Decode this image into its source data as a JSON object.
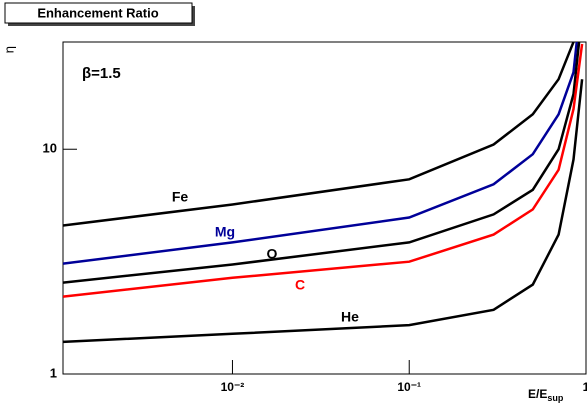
{
  "chart_data": {
    "type": "line",
    "title": "Enhancement Ratio",
    "annotation": "β=1.5",
    "x_label": "E/E",
    "x_label_sub": "sup",
    "y_label": "η",
    "x": [
      0.0011,
      0.01,
      0.1,
      0.3,
      0.5,
      0.7,
      0.85,
      0.95
    ],
    "series": [
      {
        "name": "Fe",
        "color": "#000000",
        "values": [
          4.58,
          5.68,
          7.35,
          10.5,
          14.3,
          20.5,
          30,
          70
        ]
      },
      {
        "name": "Mg",
        "color": "#000099",
        "values": [
          3.1,
          3.85,
          4.97,
          6.98,
          9.5,
          14.3,
          22,
          50
        ]
      },
      {
        "name": "O",
        "color": "#000000",
        "values": [
          2.55,
          3.07,
          3.85,
          5.13,
          6.6,
          10,
          17.6,
          40
        ]
      },
      {
        "name": "C",
        "color": "#ff0000",
        "values": [
          2.21,
          2.68,
          3.16,
          4.17,
          5.4,
          8.1,
          15.1,
          29.4
        ]
      },
      {
        "name": "He",
        "color": "#000000",
        "values": [
          1.39,
          1.51,
          1.65,
          1.93,
          2.5,
          4.17,
          9.0,
          20.5
        ]
      }
    ],
    "xlim": [
      0.0011,
      1
    ],
    "ylim": [
      1,
      30
    ],
    "log_x": true,
    "log_y": true,
    "xticks": [
      {
        "value": 0.01,
        "label": "10⁻²"
      },
      {
        "value": 0.1,
        "label": "10⁻¹"
      },
      1
    ],
    "yticks": [
      1,
      10
    ]
  }
}
